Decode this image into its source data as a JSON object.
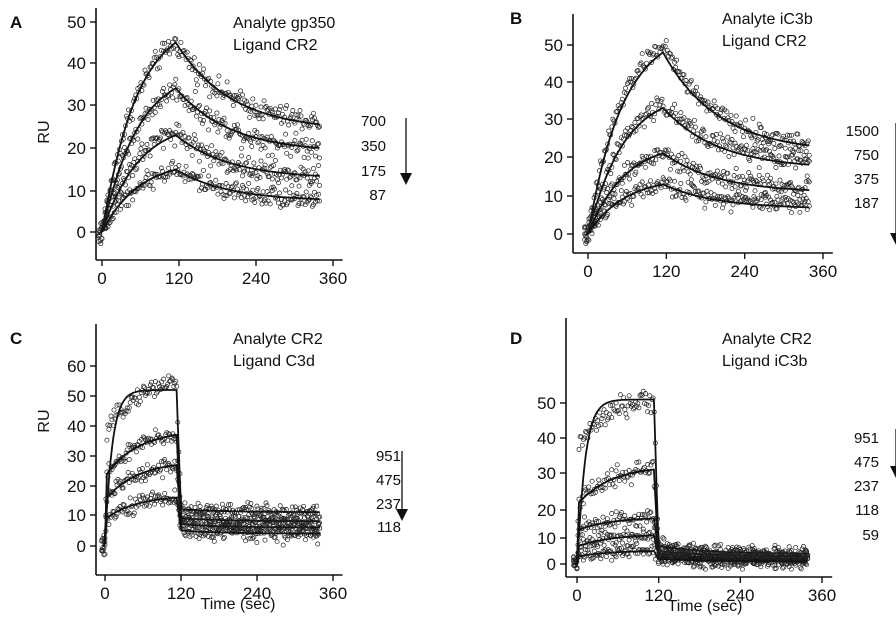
{
  "chart_data": [
    {
      "type": "scatter",
      "panel": "A",
      "annotation": [
        "Analyte gp350",
        "Ligand CR2"
      ],
      "xlabel": "",
      "ylabel": "RU",
      "xlim": [
        -10,
        375
      ],
      "ylim": [
        -2,
        50
      ],
      "xticks": [
        0,
        120,
        240,
        360
      ],
      "yticks": [
        0,
        10,
        20,
        30,
        40,
        50
      ],
      "concentrations": [
        "700",
        "350",
        "175",
        "87"
      ],
      "series": [
        {
          "name": "700",
          "assoc_end": 45,
          "diss_end": 26,
          "noise": 1.3,
          "fit_peak": 45,
          "fit_end": 25.5
        },
        {
          "name": "350",
          "assoc_end": 34,
          "diss_end": 20,
          "noise": 1.3,
          "fit_peak": 34,
          "fit_end": 20
        },
        {
          "name": "175",
          "assoc_end": 24,
          "diss_end": 13,
          "noise": 1.3,
          "fit_peak": 23,
          "fit_end": 13.5
        },
        {
          "name": "87",
          "assoc_end": 15,
          "diss_end": 8,
          "noise": 1.2,
          "fit_peak": 15,
          "fit_end": 8
        }
      ]
    },
    {
      "type": "scatter",
      "panel": "B",
      "annotation": [
        "Analyte iC3b",
        "Ligand CR2"
      ],
      "xlabel": "",
      "ylabel": "",
      "xlim": [
        -10,
        375
      ],
      "ylim": [
        -2,
        55
      ],
      "xticks": [
        0,
        120,
        240,
        360
      ],
      "yticks": [
        0,
        10,
        20,
        30,
        40,
        50
      ],
      "concentrations": [
        "1500",
        "750",
        "375",
        "187"
      ],
      "series": [
        {
          "name": "1500",
          "assoc_end": 50,
          "diss_end": 23,
          "noise": 1.3,
          "fit_peak": 48,
          "fit_end": 23
        },
        {
          "name": "750",
          "assoc_end": 34,
          "diss_end": 19,
          "noise": 1.3,
          "fit_peak": 33,
          "fit_end": 18
        },
        {
          "name": "375",
          "assoc_end": 21,
          "diss_end": 12,
          "noise": 1.3,
          "fit_peak": 21,
          "fit_end": 11.5
        },
        {
          "name": "187",
          "assoc_end": 13,
          "diss_end": 8,
          "noise": 1.2,
          "fit_peak": 13,
          "fit_end": 7
        }
      ]
    },
    {
      "type": "scatter",
      "panel": "C",
      "annotation": [
        "Analyte CR2",
        "Ligand C3d"
      ],
      "xlabel": "Time (sec)",
      "ylabel": "RU",
      "xlim": [
        -10,
        375
      ],
      "ylim": [
        -2,
        60
      ],
      "xticks": [
        0,
        120,
        240,
        360
      ],
      "yticks": [
        0,
        10,
        20,
        30,
        40,
        50,
        60
      ],
      "concentrations": [
        "951",
        "475",
        "237",
        "118"
      ],
      "series": [
        {
          "name": "951",
          "assoc_start": 38,
          "assoc_end": 55,
          "diss_start": 12,
          "diss_end": 11,
          "noise": 1.4,
          "fit_peak": 52,
          "fit_end": 12
        },
        {
          "name": "475",
          "assoc_start": 24,
          "assoc_end": 37,
          "diss_start": 9,
          "diss_end": 8,
          "noise": 1.4
        },
        {
          "name": "237",
          "assoc_start": 16,
          "assoc_end": 27,
          "diss_start": 7,
          "diss_end": 6,
          "noise": 1.4
        },
        {
          "name": "118",
          "assoc_start": 9,
          "assoc_end": 16,
          "diss_start": 5,
          "diss_end": 4,
          "noise": 1.4
        }
      ]
    },
    {
      "type": "scatter",
      "panel": "D",
      "annotation": [
        "Analyte CR2",
        "Ligand iC3b"
      ],
      "xlabel": "Time (sec)",
      "ylabel": "",
      "xlim": [
        -10,
        375
      ],
      "ylim": [
        -2,
        55
      ],
      "xticks": [
        0,
        120,
        240,
        360
      ],
      "yticks": [
        0,
        10,
        20,
        30,
        40,
        50
      ],
      "concentrations": [
        "951",
        "475",
        "237",
        "118",
        "59"
      ],
      "series": [
        {
          "name": "951",
          "assoc_start": 38,
          "assoc_end": 51,
          "diss_start": 7,
          "diss_end": 4,
          "noise": 1.5,
          "fit_peak": 51,
          "fit_end": 4
        },
        {
          "name": "475",
          "assoc_start": 22,
          "assoc_end": 31,
          "diss_start": 5,
          "diss_end": 3,
          "noise": 1.5
        },
        {
          "name": "237",
          "assoc_start": 13,
          "assoc_end": 17,
          "diss_start": 4,
          "diss_end": 2,
          "noise": 1.5
        },
        {
          "name": "118",
          "assoc_start": 7,
          "assoc_end": 11,
          "diss_start": 3,
          "diss_end": 1.5,
          "noise": 1.5
        },
        {
          "name": "59",
          "assoc_start": 3,
          "assoc_end": 5,
          "diss_start": 2,
          "diss_end": 1,
          "noise": 1.4
        }
      ]
    }
  ]
}
